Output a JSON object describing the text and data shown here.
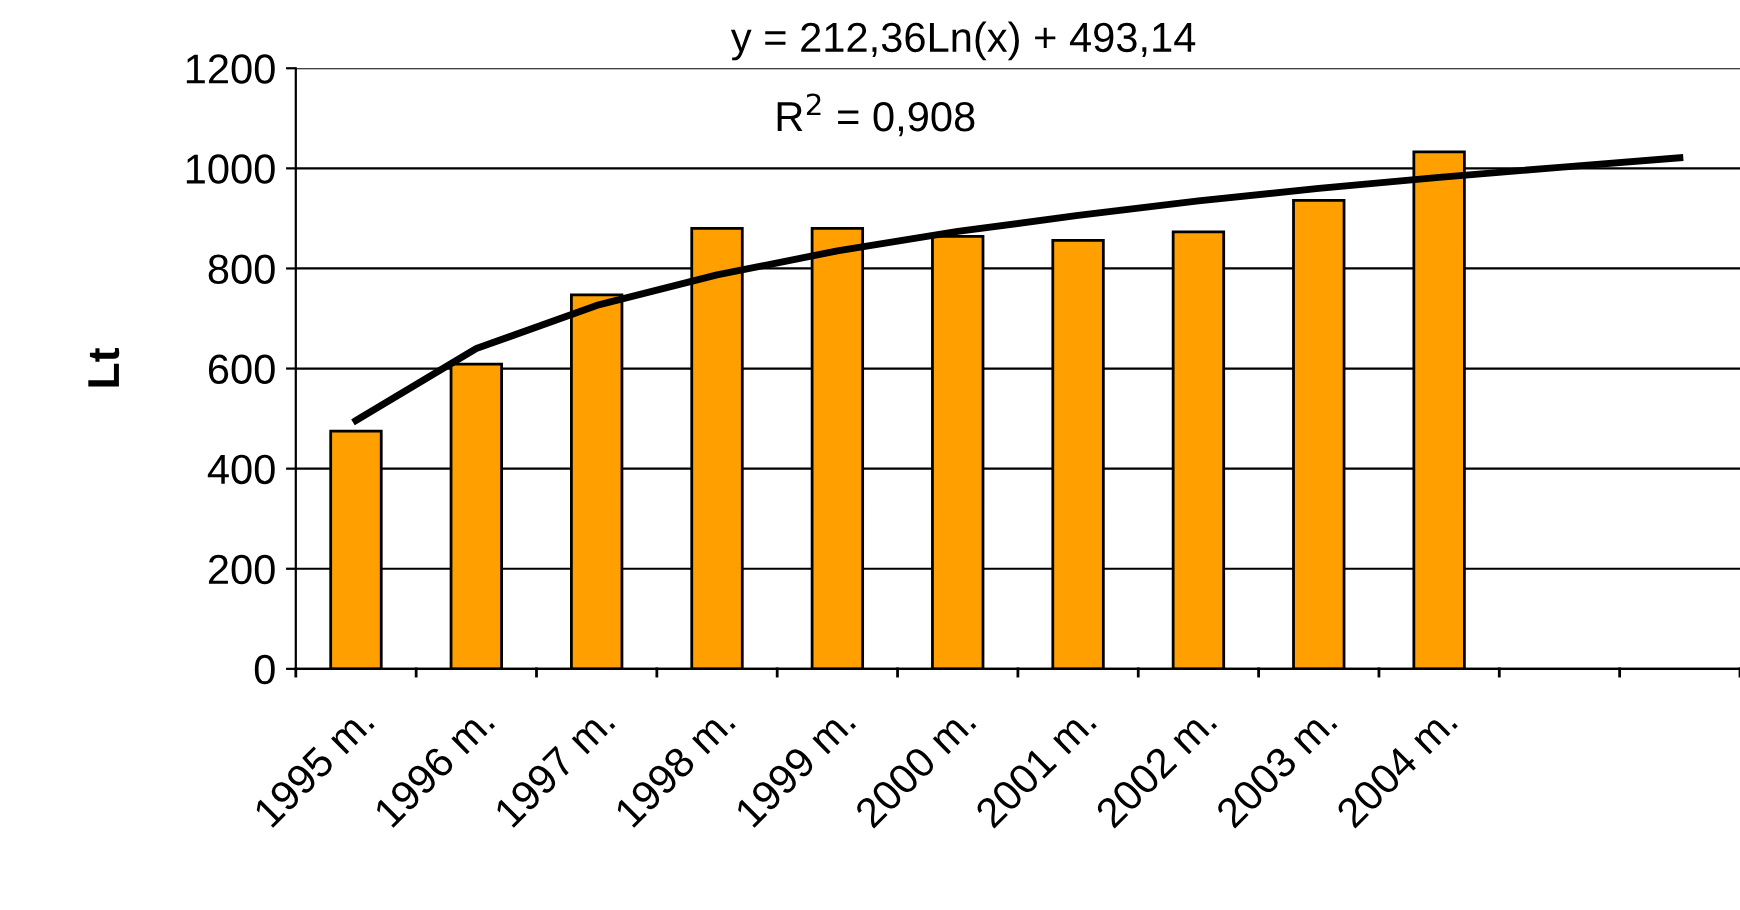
{
  "chart_data": {
    "type": "bar",
    "ylabel": "Lt",
    "categories": [
      "1995 m.",
      "1996 m.",
      "1997 m.",
      "1998 m.",
      "1999 m.",
      "2000 m.",
      "2001 m.",
      "2002 m.",
      "2003 m.",
      "2004 m.",
      null,
      null
    ],
    "series": [
      {
        "color": "#ffa000",
        "values": [
          475,
          609,
          747,
          880,
          880,
          864,
          856,
          873,
          936,
          1033,
          null,
          null
        ]
      },
      {
        "type": "line",
        "color": "#000000",
        "values": [
          496,
          640,
          726,
          787,
          835,
          874,
          906,
          935,
          960,
          982,
          1002,
          1021
        ]
      }
    ],
    "annotations": [
      "y = 212,36Ln(x) + 493,14",
      "R$^{2}$ = 0,908"
    ],
    "ylim": [
      0,
      1200
    ],
    "yticks": [
      0,
      200,
      400,
      600,
      800,
      1000,
      1200
    ],
    "grid": "y",
    "legend": false
  }
}
